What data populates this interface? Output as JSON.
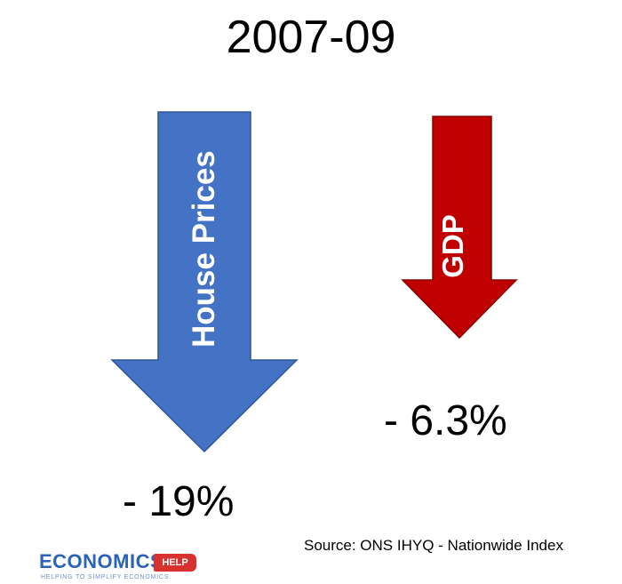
{
  "title": "2007-09",
  "arrows": [
    {
      "label": "House Prices",
      "value": "- 19%",
      "color": "#4472c4",
      "stroke": "#2f5597"
    },
    {
      "label": "GDP",
      "value": "- 6.3%",
      "color": "#c00000",
      "stroke": "#8b0000"
    }
  ],
  "source": "Source: ONS IHYQ - Nationwide Index",
  "logo": {
    "main": "ECONOMICS",
    "tag": "HELP",
    "tagline": "HELPING TO SIMPLIFY ECONOMICS",
    "brand_color": "#2a63b7",
    "tag_color": "#d8322e"
  }
}
